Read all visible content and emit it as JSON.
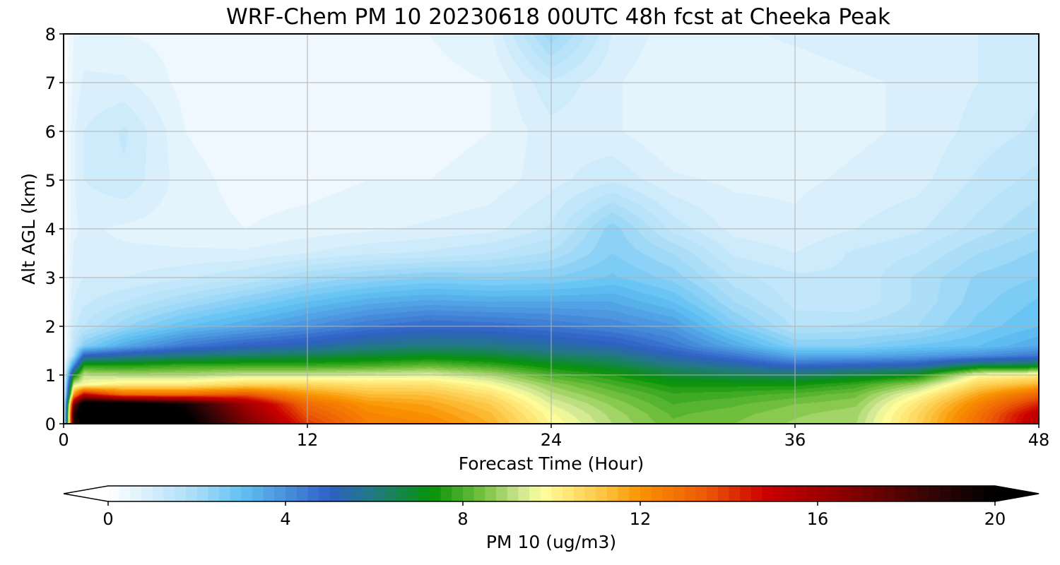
{
  "chart_data": {
    "type": "heatmap",
    "subtype": "filled-contour time-height cross section",
    "title": "WRF-Chem PM 10  20230618 00UTC 48h fcst at Cheeka Peak",
    "xlabel": "Forecast Time (Hour)",
    "ylabel": "Alt AGL (km)",
    "xlim": [
      0,
      48
    ],
    "ylim": [
      0,
      8
    ],
    "x_ticks": [
      0,
      12,
      24,
      36,
      48
    ],
    "y_ticks": [
      0,
      1,
      2,
      3,
      4,
      5,
      6,
      7,
      8
    ],
    "grid": true,
    "colorbar": {
      "label": "PM 10  (ug/m3)",
      "range": [
        0,
        20
      ],
      "ticks": [
        0,
        4,
        8,
        12,
        16,
        20
      ],
      "extend": "both",
      "orientation": "horizontal",
      "position": "bottom"
    },
    "colormap": [
      {
        "v": 0,
        "c": "#ffffff"
      },
      {
        "v": 2,
        "c": "#a7dcf7"
      },
      {
        "v": 3,
        "c": "#62c2f4"
      },
      {
        "v": 5,
        "c": "#2f60c5"
      },
      {
        "v": 6,
        "c": "#207a80"
      },
      {
        "v": 7.3,
        "c": "#079207"
      },
      {
        "v": 8.5,
        "c": "#7cc442"
      },
      {
        "v": 9.3,
        "c": "#cfe693"
      },
      {
        "v": 9.8,
        "c": "#fffe9e"
      },
      {
        "v": 11.2,
        "c": "#fcc33f"
      },
      {
        "v": 12,
        "c": "#fa9300"
      },
      {
        "v": 13.5,
        "c": "#eb5806"
      },
      {
        "v": 14.8,
        "c": "#cc0000"
      },
      {
        "v": 16.5,
        "c": "#8f0000"
      },
      {
        "v": 18.5,
        "c": "#350505"
      },
      {
        "v": 20,
        "c": "#000000"
      }
    ],
    "times_h": [
      0,
      0.5,
      1,
      3,
      6,
      9,
      12,
      15,
      18,
      21,
      24,
      27,
      30,
      33,
      36,
      39,
      42,
      45,
      48
    ],
    "heights_km": [
      0,
      0.2,
      0.4,
      0.6,
      0.8,
      1.0,
      1.2,
      1.4,
      1.6,
      2.0,
      2.5,
      3.0,
      3.5,
      4.0,
      5.0,
      6.0,
      7.0,
      8.0
    ],
    "pm10_ug_m3_by_time": [
      [
        0,
        0,
        0,
        0,
        0,
        0,
        0,
        0,
        0,
        0,
        0,
        0,
        0,
        0,
        0,
        0,
        0,
        0
      ],
      [
        19,
        19,
        17,
        12,
        9.5,
        7,
        4,
        2,
        1.5,
        1.2,
        1.0,
        0.9,
        0.8,
        0.7,
        0.7,
        0.7,
        0.6,
        0.5
      ],
      [
        20.5,
        21,
        21,
        15,
        9.8,
        9.2,
        7.5,
        5,
        2.5,
        1.5,
        1.2,
        1.0,
        0.8,
        0.8,
        1.0,
        1.0,
        0.8,
        0.6
      ],
      [
        21,
        21,
        21,
        13,
        10.3,
        9,
        7.5,
        5.5,
        3.5,
        2.2,
        1.5,
        1.0,
        0.8,
        0.7,
        1.2,
        1.3,
        0.8,
        0.5
      ],
      [
        20.5,
        20,
        19.5,
        13,
        10.3,
        9,
        7.8,
        6,
        4.5,
        3,
        2,
        1.2,
        0.8,
        0.6,
        0.6,
        0.5,
        0.4,
        0.4
      ],
      [
        17,
        16.5,
        16,
        13.5,
        10.8,
        9.3,
        7.8,
        6.3,
        5,
        3.5,
        2.5,
        1.5,
        0.8,
        0.5,
        0.4,
        0.3,
        0.3,
        0.4
      ],
      [
        14,
        13.5,
        13,
        12,
        10.8,
        9.3,
        7.8,
        6.5,
        5.3,
        4,
        3,
        2,
        1.0,
        0.6,
        0.4,
        0.3,
        0.3,
        0.4
      ],
      [
        12.5,
        12.3,
        12,
        11.3,
        10.5,
        9.4,
        7.9,
        6.8,
        5.8,
        4.5,
        3.4,
        2.3,
        1.2,
        0.7,
        0.5,
        0.4,
        0.3,
        0.5
      ],
      [
        12.3,
        12,
        11.7,
        11.2,
        10.5,
        9.5,
        8.2,
        7,
        6,
        4.8,
        3.6,
        2.5,
        1.3,
        0.8,
        0.5,
        0.4,
        0.4,
        0.5
      ],
      [
        11.5,
        11.3,
        11,
        10.5,
        9.8,
        9,
        7.8,
        6.8,
        5.9,
        4.7,
        3.5,
        2.4,
        1.5,
        0.9,
        0.6,
        0.5,
        0.5,
        0.7
      ],
      [
        10,
        9.8,
        9.5,
        9.1,
        8.7,
        8,
        7.2,
        6.3,
        5.5,
        4.5,
        3.5,
        2.5,
        1.8,
        1.3,
        0.9,
        0.9,
        1.2,
        2.2
      ],
      [
        9,
        8.9,
        8.7,
        8.4,
        8,
        7.5,
        6.7,
        6,
        5.2,
        4.2,
        3.5,
        2.8,
        2.5,
        2.4,
        1.2,
        0.8,
        0.8,
        1.0
      ],
      [
        8.3,
        8.2,
        8,
        7.8,
        7.4,
        6.8,
        6,
        5.2,
        4.5,
        3.8,
        3,
        2.4,
        2,
        1.4,
        0.8,
        0.5,
        0.5,
        0.6
      ],
      [
        8.5,
        8.4,
        8.2,
        7.9,
        7.4,
        6.5,
        5.5,
        4.5,
        3.5,
        2.6,
        2,
        1.6,
        1.2,
        0.9,
        0.7,
        0.5,
        0.6,
        0.7
      ],
      [
        8.8,
        8.7,
        8.5,
        8.1,
        7.4,
        6.3,
        4.8,
        3.5,
        2.5,
        1.7,
        1.4,
        1.3,
        1.0,
        0.8,
        0.7,
        0.6,
        0.6,
        0.8
      ],
      [
        9,
        8.9,
        8.7,
        8.4,
        7.8,
        6.7,
        5,
        3.5,
        2.5,
        1.8,
        1.3,
        1.3,
        1.3,
        1.0,
        0.8,
        0.7,
        0.7,
        0.9
      ],
      [
        10.8,
        10.7,
        10.4,
        9.8,
        8.8,
        7.2,
        5.2,
        3.7,
        2.8,
        2.0,
        1.8,
        1.8,
        1.5,
        1.2,
        0.9,
        0.8,
        0.8,
        1.0
      ],
      [
        13,
        12.8,
        12.4,
        11.7,
        10.8,
        9.8,
        6.5,
        4,
        3,
        2.6,
        2.4,
        2.3,
        2.0,
        1.6,
        1.3,
        1.1,
        1.0,
        1.0
      ],
      [
        15.5,
        15.3,
        14.3,
        13.2,
        11.5,
        10.2,
        6.7,
        4.5,
        3.5,
        3.0,
        2.8,
        2.5,
        2.3,
        2.0,
        1.6,
        1.3,
        1.2,
        1.2
      ]
    ]
  }
}
